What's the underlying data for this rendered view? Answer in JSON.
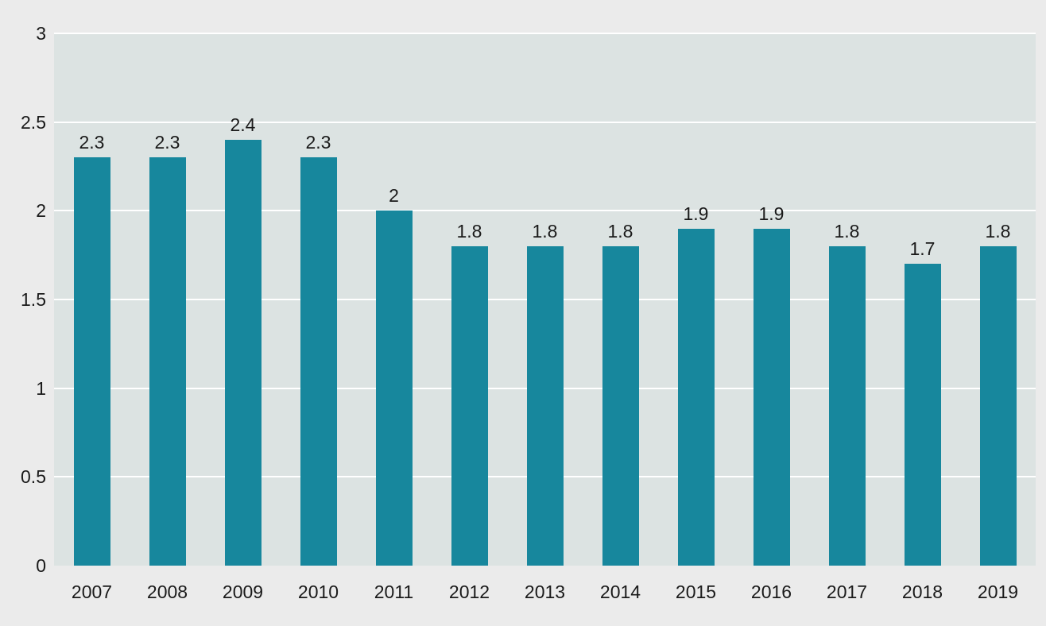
{
  "chart_data": {
    "type": "bar",
    "title": "",
    "xlabel": "",
    "ylabel": "",
    "categories": [
      "2007",
      "2008",
      "2009",
      "2010",
      "2011",
      "2012",
      "2013",
      "2014",
      "2015",
      "2016",
      "2017",
      "2018",
      "2019"
    ],
    "values": [
      2.3,
      2.3,
      2.4,
      2.3,
      2,
      1.8,
      1.8,
      1.8,
      1.9,
      1.9,
      1.8,
      1.7,
      1.8
    ],
    "value_labels": [
      "2.3",
      "2.3",
      "2.4",
      "2.3",
      "2",
      "1.8",
      "1.8",
      "1.8",
      "1.9",
      "1.9",
      "1.8",
      "1.7",
      "1.8"
    ],
    "ylim": [
      0,
      3
    ],
    "yticks": [
      0,
      0.5,
      1,
      1.5,
      2,
      2.5,
      3
    ],
    "ytick_labels": [
      "0",
      "0.5",
      "1",
      "1.5",
      "2",
      "2.5",
      "3"
    ],
    "grid": true,
    "legend": false,
    "colors": {
      "bar": "#17879d",
      "plot_background": "#dce3e2",
      "page_background": "#ebebeb",
      "gridline": "#ffffff",
      "text": "#1a1a1a"
    }
  }
}
